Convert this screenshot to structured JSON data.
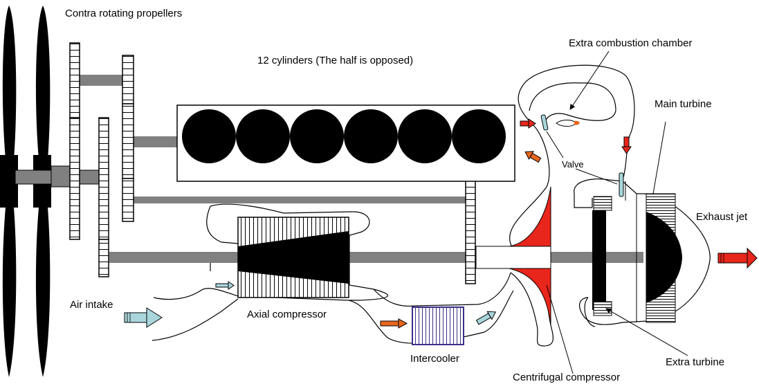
{
  "labels": {
    "contra_propellers": "Contra rotating propellers",
    "cylinders": "12 cylinders (The half is opposed)",
    "extra_combustion": "Extra combustion chamber",
    "main_turbine": "Main turbine",
    "valve": "Valve",
    "exhaust_jet": "Exhaust jet",
    "air_intake": "Air intake",
    "axial_compressor": "Axial compressor",
    "intercooler": "Intercooler",
    "centrifugal_compressor": "Centrifugal compressor",
    "extra_turbine": "Extra turbine"
  },
  "cylinder_count_shown": 6,
  "colors": {
    "hot_flow": "#e8261c",
    "cooled_flow": "#e8661c",
    "cool_air": "#a9d6dc",
    "intercooler_frame": "#3a2f8a",
    "metal": "#808080",
    "dark": "#000000"
  }
}
